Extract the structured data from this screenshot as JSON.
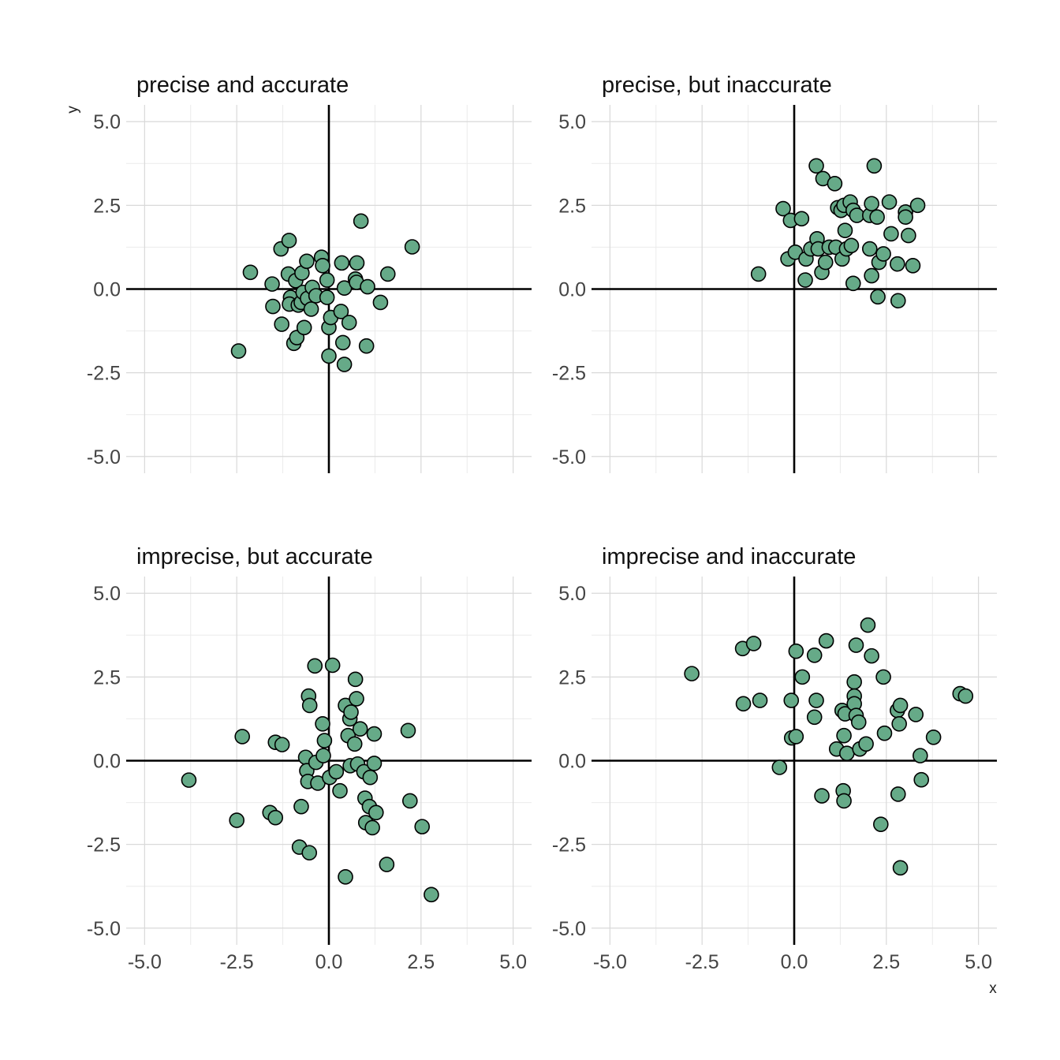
{
  "figure": {
    "xlabel": "x",
    "ylabel": "y",
    "point_color": "#66aa88"
  },
  "chart_data": [
    {
      "type": "scatter",
      "title": "precise and accurate",
      "xlim": [
        -5.5,
        5.5
      ],
      "ylim": [
        -5.5,
        5.5
      ],
      "x_ticks": [
        "-5.0",
        "-2.5",
        "0.0",
        "2.5",
        "5.0"
      ],
      "y_ticks": [
        "-5.0",
        "-2.5",
        "0.0",
        "2.5",
        "5.0"
      ],
      "grid": true,
      "points": [
        [
          -2.45,
          -1.85
        ],
        [
          -2.13,
          0.5
        ],
        [
          -1.54,
          0.15
        ],
        [
          -1.52,
          -0.52
        ],
        [
          -1.3,
          1.2
        ],
        [
          -1.28,
          -1.05
        ],
        [
          -1.08,
          1.45
        ],
        [
          -1.1,
          0.45
        ],
        [
          -1.04,
          -0.25
        ],
        [
          -1.07,
          -0.45
        ],
        [
          -0.95,
          -1.62
        ],
        [
          -0.9,
          0.25
        ],
        [
          -0.87,
          -1.45
        ],
        [
          -0.83,
          -0.48
        ],
        [
          -0.73,
          0.48
        ],
        [
          -0.75,
          -0.4
        ],
        [
          -0.7,
          -0.1
        ],
        [
          -0.67,
          -1.15
        ],
        [
          -0.6,
          0.83
        ],
        [
          -0.58,
          -0.28
        ],
        [
          -0.48,
          -0.6
        ],
        [
          -0.45,
          0.05
        ],
        [
          -0.35,
          -0.2
        ],
        [
          -0.2,
          0.95
        ],
        [
          -0.17,
          0.7
        ],
        [
          -0.05,
          0.27
        ],
        [
          -0.05,
          -0.25
        ],
        [
          0.0,
          -1.15
        ],
        [
          0.0,
          -2.0
        ],
        [
          0.05,
          -0.85
        ],
        [
          0.35,
          0.78
        ],
        [
          0.33,
          -0.67
        ],
        [
          0.38,
          -1.6
        ],
        [
          0.42,
          -2.25
        ],
        [
          0.42,
          0.03
        ],
        [
          0.55,
          -1.0
        ],
        [
          0.72,
          0.3
        ],
        [
          0.75,
          0.2
        ],
        [
          0.76,
          0.78
        ],
        [
          0.87,
          2.03
        ],
        [
          1.02,
          -1.7
        ],
        [
          1.05,
          0.07
        ],
        [
          1.4,
          -0.4
        ],
        [
          1.6,
          0.45
        ],
        [
          2.26,
          1.26
        ]
      ]
    },
    {
      "type": "scatter",
      "title": "precise, but inaccurate",
      "xlim": [
        -5.5,
        5.5
      ],
      "ylim": [
        -5.5,
        5.5
      ],
      "x_ticks": [
        "-5.0",
        "-2.5",
        "0.0",
        "2.5",
        "5.0"
      ],
      "y_ticks": [
        "-5.0",
        "-2.5",
        "0.0",
        "2.5",
        "5.0"
      ],
      "grid": true,
      "points": [
        [
          -0.97,
          0.45
        ],
        [
          -0.3,
          2.4
        ],
        [
          -0.17,
          0.9
        ],
        [
          -0.1,
          2.05
        ],
        [
          0.03,
          1.1
        ],
        [
          0.2,
          2.1
        ],
        [
          0.3,
          0.27
        ],
        [
          0.32,
          0.9
        ],
        [
          0.45,
          1.2
        ],
        [
          0.6,
          3.68
        ],
        [
          0.62,
          1.5
        ],
        [
          0.65,
          1.2
        ],
        [
          0.75,
          0.5
        ],
        [
          0.78,
          3.3
        ],
        [
          0.85,
          0.8
        ],
        [
          0.95,
          1.25
        ],
        [
          1.1,
          3.15
        ],
        [
          1.13,
          1.25
        ],
        [
          1.18,
          2.43
        ],
        [
          1.27,
          2.35
        ],
        [
          1.3,
          0.9
        ],
        [
          1.35,
          2.5
        ],
        [
          1.38,
          1.75
        ],
        [
          1.42,
          1.2
        ],
        [
          1.52,
          2.6
        ],
        [
          1.55,
          1.3
        ],
        [
          1.6,
          2.35
        ],
        [
          1.6,
          0.17
        ],
        [
          1.7,
          2.2
        ],
        [
          2.05,
          1.2
        ],
        [
          2.05,
          2.2
        ],
        [
          2.1,
          2.55
        ],
        [
          2.1,
          0.4
        ],
        [
          2.17,
          3.68
        ],
        [
          2.25,
          2.15
        ],
        [
          2.27,
          -0.23
        ],
        [
          2.3,
          0.8
        ],
        [
          2.42,
          1.05
        ],
        [
          2.58,
          2.6
        ],
        [
          2.63,
          1.65
        ],
        [
          2.8,
          0.75
        ],
        [
          2.82,
          -0.35
        ],
        [
          3.02,
          2.3
        ],
        [
          3.02,
          2.15
        ],
        [
          3.1,
          1.6
        ],
        [
          3.22,
          0.7
        ],
        [
          3.35,
          2.5
        ]
      ]
    },
    {
      "type": "scatter",
      "title": "imprecise, but accurate",
      "xlim": [
        -5.5,
        5.5
      ],
      "ylim": [
        -5.5,
        5.5
      ],
      "x_ticks": [
        "-5.0",
        "-2.5",
        "0.0",
        "2.5",
        "5.0"
      ],
      "y_ticks": [
        "-5.0",
        "-2.5",
        "0.0",
        "2.5",
        "5.0"
      ],
      "grid": true,
      "points": [
        [
          -3.8,
          -0.58
        ],
        [
          -2.5,
          -1.78
        ],
        [
          -2.35,
          0.72
        ],
        [
          -1.6,
          -1.55
        ],
        [
          -1.45,
          -1.7
        ],
        [
          -1.45,
          0.55
        ],
        [
          -1.27,
          0.48
        ],
        [
          -0.8,
          -2.58
        ],
        [
          -0.75,
          -1.37
        ],
        [
          -0.63,
          0.1
        ],
        [
          -0.6,
          -0.3
        ],
        [
          -0.57,
          -0.62
        ],
        [
          -0.55,
          1.93
        ],
        [
          -0.52,
          1.65
        ],
        [
          -0.53,
          -2.75
        ],
        [
          -0.38,
          2.83
        ],
        [
          -0.35,
          -0.05
        ],
        [
          -0.3,
          -0.67
        ],
        [
          -0.17,
          1.1
        ],
        [
          -0.15,
          0.15
        ],
        [
          -0.12,
          0.6
        ],
        [
          0.02,
          -0.5
        ],
        [
          0.1,
          2.85
        ],
        [
          0.2,
          -0.33
        ],
        [
          0.3,
          -0.9
        ],
        [
          0.45,
          -3.47
        ],
        [
          0.45,
          1.65
        ],
        [
          0.52,
          0.75
        ],
        [
          0.57,
          1.25
        ],
        [
          0.6,
          1.45
        ],
        [
          0.58,
          -0.15
        ],
        [
          0.72,
          2.43
        ],
        [
          0.7,
          0.5
        ],
        [
          0.75,
          1.85
        ],
        [
          0.78,
          -0.1
        ],
        [
          0.85,
          0.95
        ],
        [
          0.95,
          -0.33
        ],
        [
          0.98,
          -1.12
        ],
        [
          1.0,
          -1.85
        ],
        [
          1.1,
          -1.37
        ],
        [
          1.12,
          -0.5
        ],
        [
          1.18,
          -2.0
        ],
        [
          1.23,
          0.8
        ],
        [
          1.23,
          -0.08
        ],
        [
          1.28,
          -1.55
        ],
        [
          1.57,
          -3.1
        ],
        [
          2.15,
          0.9
        ],
        [
          2.2,
          -1.2
        ],
        [
          2.53,
          -1.97
        ],
        [
          2.78,
          -4.0
        ]
      ]
    },
    {
      "type": "scatter",
      "title": "imprecise and inaccurate",
      "xlim": [
        -5.5,
        5.5
      ],
      "ylim": [
        -5.5,
        5.5
      ],
      "x_ticks": [
        "-5.0",
        "-2.5",
        "0.0",
        "2.5",
        "5.0"
      ],
      "y_ticks": [
        "-5.0",
        "-2.5",
        "0.0",
        "2.5",
        "5.0"
      ],
      "grid": true,
      "points": [
        [
          -2.78,
          2.6
        ],
        [
          -1.4,
          3.35
        ],
        [
          -1.38,
          1.7
        ],
        [
          -1.1,
          3.5
        ],
        [
          -0.93,
          1.8
        ],
        [
          -0.4,
          -0.2
        ],
        [
          -0.08,
          1.8
        ],
        [
          -0.07,
          0.68
        ],
        [
          0.05,
          0.72
        ],
        [
          0.05,
          3.27
        ],
        [
          0.22,
          2.5
        ],
        [
          0.55,
          3.15
        ],
        [
          0.55,
          1.3
        ],
        [
          0.6,
          1.8
        ],
        [
          0.75,
          -1.05
        ],
        [
          0.87,
          3.58
        ],
        [
          1.15,
          0.35
        ],
        [
          1.3,
          1.5
        ],
        [
          1.33,
          -0.9
        ],
        [
          1.35,
          -1.2
        ],
        [
          1.35,
          0.75
        ],
        [
          1.38,
          1.4
        ],
        [
          1.43,
          0.22
        ],
        [
          1.63,
          2.35
        ],
        [
          1.63,
          1.93
        ],
        [
          1.63,
          1.7
        ],
        [
          1.68,
          3.45
        ],
        [
          1.68,
          1.35
        ],
        [
          1.75,
          1.15
        ],
        [
          1.78,
          0.35
        ],
        [
          1.95,
          0.5
        ],
        [
          2.0,
          4.05
        ],
        [
          2.1,
          3.13
        ],
        [
          2.35,
          -1.9
        ],
        [
          2.42,
          2.5
        ],
        [
          2.45,
          0.82
        ],
        [
          2.8,
          1.5
        ],
        [
          2.82,
          -1.0
        ],
        [
          2.85,
          1.1
        ],
        [
          2.88,
          -3.2
        ],
        [
          2.88,
          1.65
        ],
        [
          3.3,
          1.38
        ],
        [
          3.42,
          0.15
        ],
        [
          3.45,
          -0.57
        ],
        [
          3.78,
          0.7
        ],
        [
          4.5,
          2.0
        ],
        [
          4.65,
          1.93
        ]
      ]
    }
  ]
}
